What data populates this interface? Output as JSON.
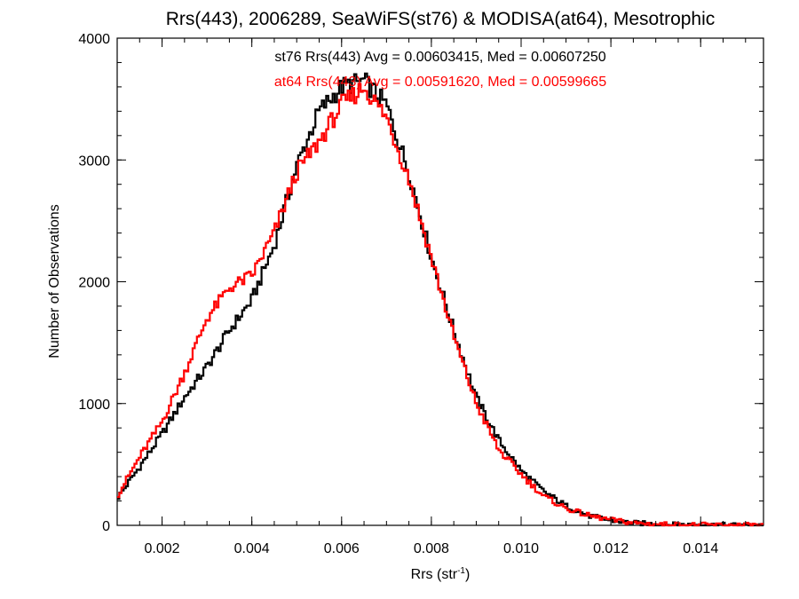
{
  "chart_data": {
    "type": "line",
    "title": "Rrs(443), 2006289, SeaWiFS(st76) & MODISA(at64), Mesotrophic",
    "xlabel_main": "Rrs (str",
    "xlabel_sup": "-1",
    "xlabel_close": ")",
    "ylabel": "Number of Observations",
    "xlim": [
      0.001,
      0.0154
    ],
    "ylim": [
      0,
      4000
    ],
    "xticks": [
      0.002,
      0.004,
      0.006,
      0.008,
      0.01,
      0.012,
      0.014
    ],
    "xtick_labels": [
      "0.002",
      "0.004",
      "0.006",
      "0.008",
      "0.010",
      "0.012",
      "0.014"
    ],
    "yticks": [
      0,
      1000,
      2000,
      3000,
      4000
    ],
    "ytick_labels": [
      "0",
      "1000",
      "2000",
      "3000",
      "4000"
    ],
    "grid": false,
    "annotations": [
      {
        "text": "st76 Rrs(443) Avg = 0.00603415, Med = 0.00607250",
        "color": "#000000"
      },
      {
        "text": "at64 Rrs(443) Avg = 0.00591620, Med = 0.00599665",
        "color": "#ff0000"
      }
    ],
    "series": [
      {
        "color": "#000000",
        "x": [
          0.001,
          0.0015,
          0.002,
          0.0025,
          0.003,
          0.0035,
          0.004,
          0.0045,
          0.005,
          0.0055,
          0.006,
          0.0065,
          0.007,
          0.0075,
          0.008,
          0.0085,
          0.009,
          0.0095,
          0.01,
          0.0105,
          0.011,
          0.0115,
          0.012,
          0.0125,
          0.013,
          0.0135,
          0.014,
          0.0145,
          0.015,
          0.0154
        ],
        "values": [
          220,
          480,
          750,
          1050,
          1300,
          1600,
          1850,
          2300,
          2950,
          3400,
          3600,
          3650,
          3450,
          2900,
          2200,
          1600,
          1050,
          700,
          450,
          280,
          160,
          80,
          40,
          20,
          10,
          5,
          3,
          2,
          1,
          0
        ]
      },
      {
        "color": "#ff0000",
        "x": [
          0.001,
          0.0015,
          0.002,
          0.0025,
          0.003,
          0.0035,
          0.004,
          0.0045,
          0.005,
          0.0055,
          0.006,
          0.0065,
          0.007,
          0.0075,
          0.008,
          0.0085,
          0.009,
          0.0095,
          0.01,
          0.0105,
          0.011,
          0.0115,
          0.012,
          0.0125,
          0.013,
          0.0135,
          0.014,
          0.0145,
          0.015,
          0.0154
        ],
        "values": [
          240,
          560,
          850,
          1250,
          1700,
          1950,
          2050,
          2400,
          2900,
          3150,
          3450,
          3600,
          3350,
          2850,
          2200,
          1550,
          1000,
          620,
          420,
          240,
          140,
          80,
          45,
          20,
          10,
          5,
          3,
          2,
          1,
          0
        ]
      }
    ]
  }
}
